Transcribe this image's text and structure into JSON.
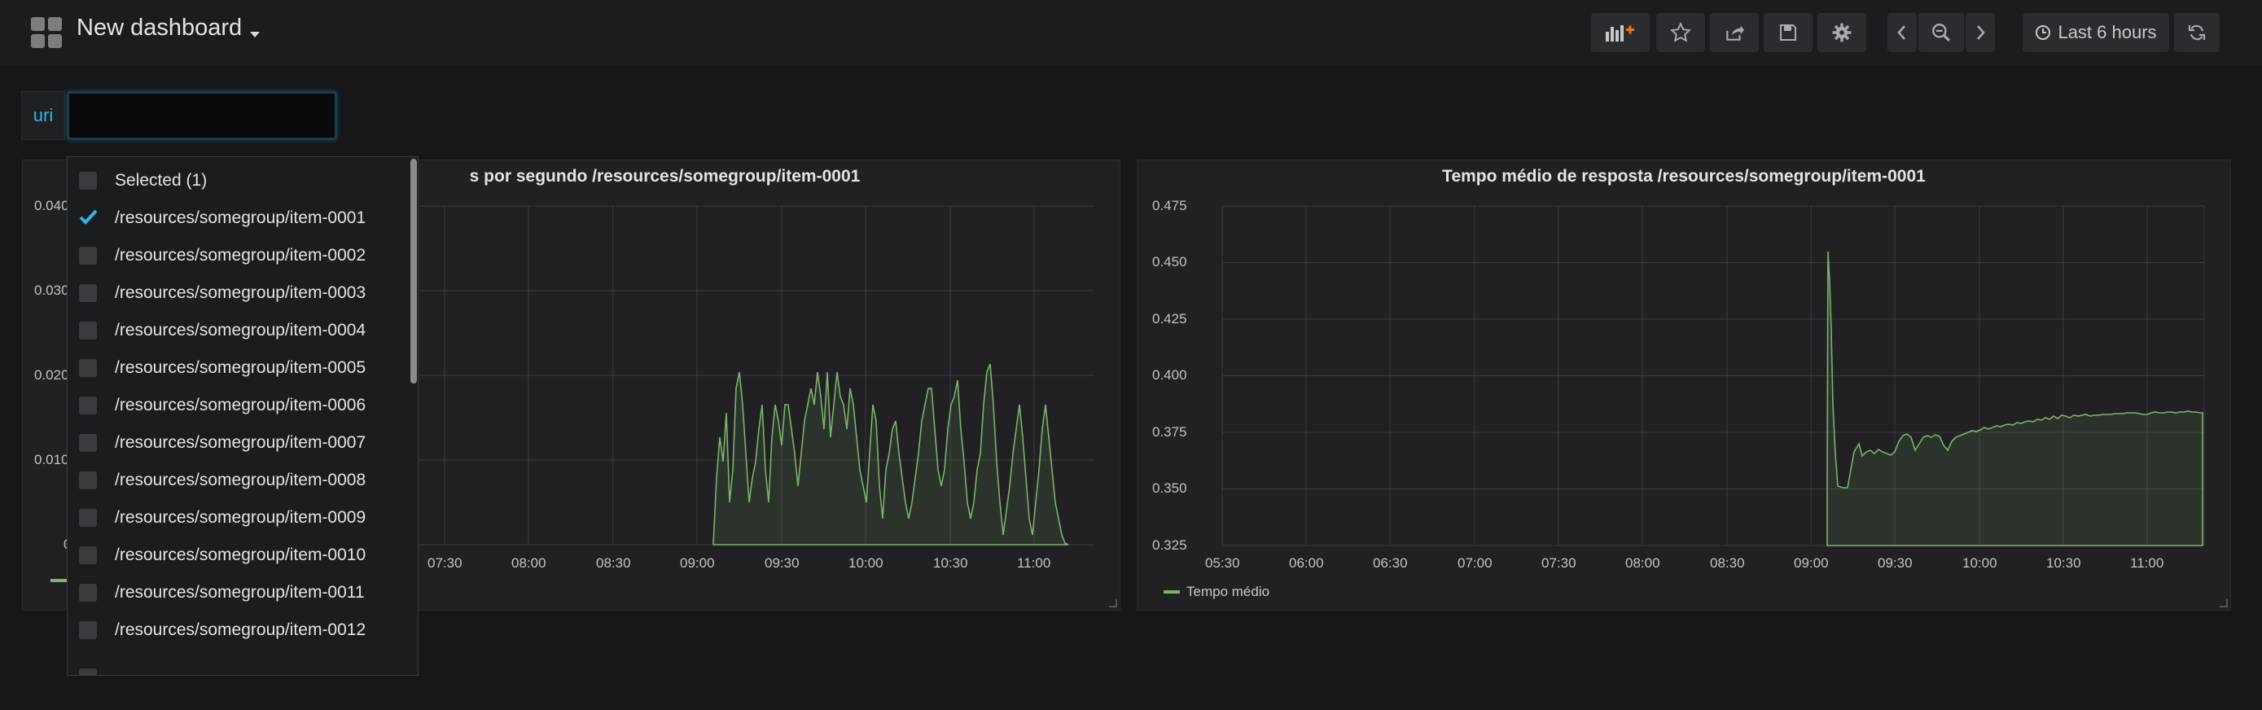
{
  "header": {
    "title": "New dashboard",
    "buttons": [
      {
        "name": "add-panel-button",
        "icon": "add-panel-icon"
      },
      {
        "name": "star-button",
        "icon": "star-icon"
      },
      {
        "name": "share-button",
        "icon": "share-icon"
      },
      {
        "name": "save-button",
        "icon": "save-icon"
      },
      {
        "name": "settings-button",
        "icon": "gear-icon"
      },
      {
        "name": "time-back-button",
        "icon": "chevron-left-icon"
      },
      {
        "name": "zoom-out-button",
        "icon": "zoom-out-icon"
      },
      {
        "name": "time-forward-button",
        "icon": "chevron-right-icon"
      },
      {
        "name": "refresh-button",
        "icon": "refresh-icon"
      }
    ],
    "time_range": "Last 6 hours"
  },
  "variables": {
    "uri_label": "uri",
    "uri_input_value": ""
  },
  "dropdown": {
    "selected_label": "Selected (1)",
    "options": [
      {
        "label": "/resources/somegroup/item-0001",
        "checked": true
      },
      {
        "label": "/resources/somegroup/item-0002",
        "checked": false
      },
      {
        "label": "/resources/somegroup/item-0003",
        "checked": false
      },
      {
        "label": "/resources/somegroup/item-0004",
        "checked": false
      },
      {
        "label": "/resources/somegroup/item-0005",
        "checked": false
      },
      {
        "label": "/resources/somegroup/item-0006",
        "checked": false
      },
      {
        "label": "/resources/somegroup/item-0007",
        "checked": false
      },
      {
        "label": "/resources/somegroup/item-0008",
        "checked": false
      },
      {
        "label": "/resources/somegroup/item-0009",
        "checked": false
      },
      {
        "label": "/resources/somegroup/item-0010",
        "checked": false
      },
      {
        "label": "/resources/somegroup/item-0011",
        "checked": false
      },
      {
        "label": "/resources/somegroup/item-0012",
        "checked": false
      }
    ]
  },
  "panels": {
    "left": {
      "title": "s por segundo /resources/somegroup/item-0001",
      "y_ticks": [
        "0.040",
        "0.030",
        "0.020",
        "0.010",
        "0"
      ],
      "x_ticks": [
        "07:30",
        "08:00",
        "08:30",
        "09:00",
        "09:30",
        "10:00",
        "10:30",
        "11:00"
      ]
    },
    "right": {
      "title": "Tempo médio de resposta /resources/somegroup/item-0001",
      "y_ticks": [
        "0.475",
        "0.450",
        "0.425",
        "0.400",
        "0.375",
        "0.350",
        "0.325"
      ],
      "x_ticks": [
        "05:30",
        "06:00",
        "06:30",
        "07:00",
        "07:30",
        "08:00",
        "08:30",
        "09:00",
        "09:30",
        "10:00",
        "10:30",
        "11:00"
      ],
      "legend": "Tempo médio"
    }
  },
  "colors": {
    "series": "#7eb26d",
    "accent": "#33b5e5",
    "background": "#161719",
    "panel": "#212124"
  }
}
